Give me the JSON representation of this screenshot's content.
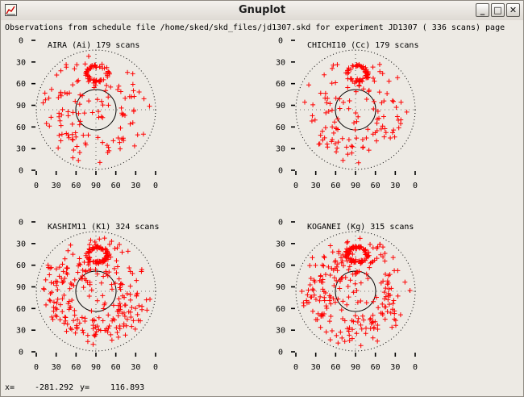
{
  "window": {
    "title": "Gnuplot",
    "icon": "gnuplot-app-icon",
    "buttons": [
      {
        "name": "minimize",
        "glyph": "_"
      },
      {
        "name": "maximize",
        "glyph": "□"
      },
      {
        "name": "close",
        "glyph": "✕"
      }
    ]
  },
  "header_text": "Observations from schedule file /home/sked/skd_files/jd1307.skd for experiment JD1307   (   336 scans) page",
  "status": {
    "x_label": "x=",
    "x_value": "-281.292",
    "y_label": "y=",
    "y_value": "116.893"
  },
  "colors": {
    "points": "#ff0000",
    "circle_outer": "#000000",
    "circle_inner": "#000000",
    "background": "#edeae4"
  },
  "chart_data": [
    {
      "type": "scatter",
      "projection": "polar-sky (azimuth/elevation)",
      "title": "AIRA (Ai)  179 scans",
      "station": "AIRA (Ai)",
      "scans": 179,
      "x_ticks": [
        "0",
        "30",
        "60",
        "90",
        "60",
        "30",
        "0"
      ],
      "y_ticks": [
        "0",
        "30",
        "60",
        "90",
        "60",
        "30",
        "0"
      ],
      "xlim": [
        -90,
        90
      ],
      "ylim": [
        -90,
        90
      ],
      "grid": "dotted outer horizon circle, solid inner circle",
      "point_marker": "+",
      "point_count": 179,
      "seed": 11
    },
    {
      "type": "scatter",
      "projection": "polar-sky (azimuth/elevation)",
      "title": "CHICHI10 (Cc)  179 scans",
      "station": "CHICHI10 (Cc)",
      "scans": 179,
      "x_ticks": [
        "0",
        "30",
        "60",
        "90",
        "60",
        "30",
        "0"
      ],
      "y_ticks": [
        "0",
        "30",
        "60",
        "90",
        "60",
        "30",
        "0"
      ],
      "xlim": [
        -90,
        90
      ],
      "ylim": [
        -90,
        90
      ],
      "grid": "dotted outer horizon circle, solid inner circle",
      "point_marker": "+",
      "point_count": 179,
      "seed": 27
    },
    {
      "type": "scatter",
      "projection": "polar-sky (azimuth/elevation)",
      "title": "KASHIM11 (K1)  324 scans",
      "station": "KASHIM11 (K1)",
      "scans": 324,
      "x_ticks": [
        "0",
        "30",
        "60",
        "90",
        "60",
        "30",
        "0"
      ],
      "y_ticks": [
        "0",
        "30",
        "60",
        "90",
        "60",
        "30",
        "0"
      ],
      "xlim": [
        -90,
        90
      ],
      "ylim": [
        -90,
        90
      ],
      "grid": "dotted outer horizon circle, solid inner circle",
      "point_marker": "+",
      "point_count": 324,
      "seed": 53
    },
    {
      "type": "scatter",
      "projection": "polar-sky (azimuth/elevation)",
      "title": "KOGANEI (Kg)  315 scans",
      "station": "KOGANEI (Kg)",
      "scans": 315,
      "x_ticks": [
        "0",
        "30",
        "60",
        "90",
        "60",
        "30",
        "0"
      ],
      "y_ticks": [
        "0",
        "30",
        "60",
        "90",
        "60",
        "30",
        "0"
      ],
      "xlim": [
        -90,
        90
      ],
      "ylim": [
        -90,
        90
      ],
      "grid": "dotted outer horizon circle, solid inner circle",
      "point_marker": "+",
      "point_count": 315,
      "seed": 71
    }
  ]
}
